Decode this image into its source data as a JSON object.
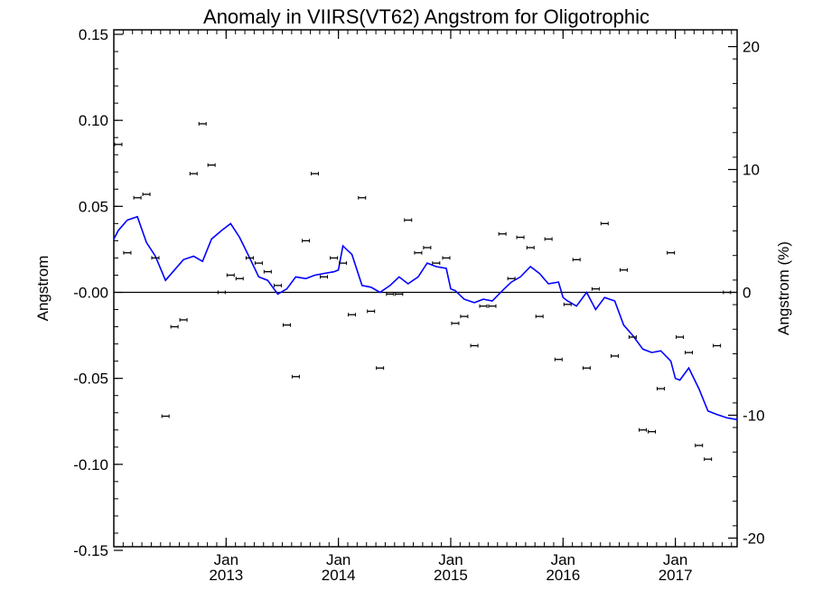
{
  "chart_data": {
    "type": "scatter",
    "title": "Anomaly in VIIRS(VT62) Angstrom for Oligotrophic",
    "xlabel": "",
    "ylabel": "Angstrom",
    "ylabel_right": "Angstrom (%)",
    "xlim": [
      2012.0,
      2017.55
    ],
    "ylim": [
      -0.15,
      0.15
    ],
    "ylim_right": [
      -21.0,
      20.0
    ],
    "y_ticks": [
      "0.15",
      "0.10",
      "0.05",
      "-0.00",
      "-0.05",
      "-0.10",
      "-0.15"
    ],
    "y_tick_values": [
      0.15,
      0.1,
      0.05,
      0.0,
      -0.05,
      -0.1,
      -0.15
    ],
    "y_right_ticks": [
      "20",
      "10",
      "0",
      "-10",
      "-20"
    ],
    "y_right_tick_values": [
      20,
      10,
      0,
      -10,
      -20
    ],
    "x_ticks": [
      {
        "month": "Jan",
        "year": "2013",
        "x": 2013.0
      },
      {
        "month": "Jan",
        "year": "2014",
        "x": 2014.0
      },
      {
        "month": "Jan",
        "year": "2015",
        "x": 2015.0
      },
      {
        "month": "Jan",
        "year": "2016",
        "x": 2016.0
      },
      {
        "month": "Jan",
        "year": "2017",
        "x": 2017.0
      }
    ],
    "zero_line": 0,
    "grid": false,
    "colors": {
      "line": "#0000ff",
      "points": "#000000",
      "axes": "#000000"
    },
    "series": [
      {
        "kind": "points",
        "x": [
          2012.04,
          2012.12,
          2012.21,
          2012.29,
          2012.37,
          2012.46,
          2012.54,
          2012.62,
          2012.71,
          2012.79,
          2012.87,
          2012.96,
          2013.04,
          2013.12,
          2013.21,
          2013.29,
          2013.37,
          2013.46,
          2013.54,
          2013.62,
          2013.71,
          2013.79,
          2013.87,
          2013.96,
          2014.04,
          2014.12,
          2014.21,
          2014.29,
          2014.37,
          2014.46,
          2014.54,
          2014.62,
          2014.71,
          2014.79,
          2014.87,
          2014.96,
          2015.04,
          2015.12,
          2015.21,
          2015.29,
          2015.37,
          2015.46,
          2015.54,
          2015.62,
          2015.71,
          2015.79,
          2015.87,
          2015.96,
          2016.04,
          2016.12,
          2016.21,
          2016.29,
          2016.37,
          2016.46,
          2016.54,
          2016.62,
          2016.71,
          2016.79,
          2016.87,
          2016.96,
          2017.04,
          2017.12,
          2017.21,
          2017.29,
          2017.37,
          2017.46
        ],
        "y": [
          0.086,
          0.023,
          0.055,
          0.057,
          0.02,
          -0.072,
          -0.02,
          -0.016,
          0.069,
          0.098,
          0.074,
          0.0,
          0.01,
          0.008,
          0.02,
          0.017,
          0.012,
          0.004,
          -0.019,
          -0.049,
          0.03,
          0.069,
          0.009,
          0.02,
          0.017,
          -0.013,
          0.055,
          -0.011,
          -0.044,
          -0.001,
          -0.001,
          0.042,
          0.023,
          0.026,
          0.017,
          0.02,
          -0.018,
          -0.014,
          -0.031,
          -0.008,
          -0.008,
          0.034,
          0.008,
          0.032,
          0.026,
          -0.014,
          0.031,
          -0.039,
          -0.007,
          0.019,
          -0.044,
          0.002,
          0.04,
          -0.037,
          0.013,
          -0.026,
          -0.08,
          -0.081,
          -0.056,
          0.023,
          -0.026,
          -0.035,
          -0.089,
          -0.097,
          -0.031,
          0.0
        ]
      },
      {
        "kind": "line",
        "x": [
          2012.0,
          2012.04,
          2012.12,
          2012.21,
          2012.29,
          2012.37,
          2012.46,
          2012.54,
          2012.62,
          2012.71,
          2012.79,
          2012.87,
          2012.96,
          2013.04,
          2013.12,
          2013.21,
          2013.29,
          2013.37,
          2013.46,
          2013.54,
          2013.62,
          2013.71,
          2013.79,
          2013.87,
          2013.96,
          2014.0,
          2014.04,
          2014.12,
          2014.21,
          2014.29,
          2014.37,
          2014.46,
          2014.54,
          2014.62,
          2014.71,
          2014.79,
          2014.87,
          2014.96,
          2015.0,
          2015.04,
          2015.12,
          2015.21,
          2015.29,
          2015.37,
          2015.46,
          2015.54,
          2015.62,
          2015.71,
          2015.79,
          2015.87,
          2015.96,
          2016.0,
          2016.04,
          2016.12,
          2016.21,
          2016.29,
          2016.37,
          2016.46,
          2016.54,
          2016.62,
          2016.71,
          2016.79,
          2016.87,
          2016.96,
          2017.0,
          2017.04,
          2017.12,
          2017.21,
          2017.29,
          2017.37,
          2017.46,
          2017.55
        ],
        "y": [
          0.031,
          0.036,
          0.042,
          0.044,
          0.029,
          0.021,
          0.007,
          0.013,
          0.019,
          0.021,
          0.018,
          0.031,
          0.036,
          0.04,
          0.032,
          0.02,
          0.009,
          0.007,
          -0.001,
          0.002,
          0.009,
          0.008,
          0.01,
          0.011,
          0.012,
          0.013,
          0.027,
          0.022,
          0.004,
          0.003,
          0.0,
          0.004,
          0.009,
          0.005,
          0.009,
          0.017,
          0.015,
          0.014,
          0.002,
          0.001,
          -0.004,
          -0.006,
          -0.004,
          -0.005,
          0.001,
          0.006,
          0.009,
          0.015,
          0.011,
          0.005,
          0.006,
          -0.003,
          -0.005,
          -0.008,
          0.0,
          -0.01,
          -0.003,
          -0.005,
          -0.019,
          -0.025,
          -0.033,
          -0.035,
          -0.034,
          -0.04,
          -0.05,
          -0.051,
          -0.044,
          -0.056,
          -0.069,
          -0.071,
          -0.073,
          -0.074
        ]
      }
    ]
  }
}
